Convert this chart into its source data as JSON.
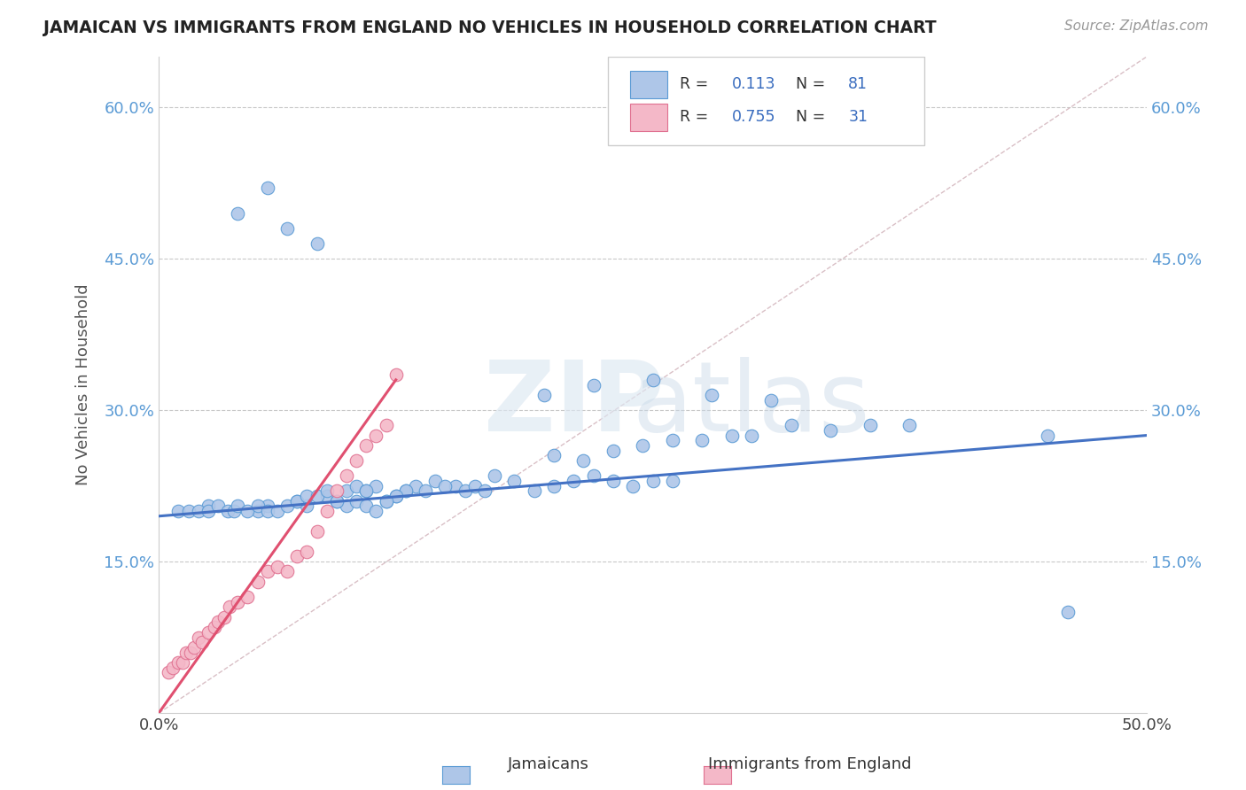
{
  "title": "JAMAICAN VS IMMIGRANTS FROM ENGLAND NO VEHICLES IN HOUSEHOLD CORRELATION CHART",
  "source": "Source: ZipAtlas.com",
  "ylabel": "No Vehicles in Household",
  "xlim": [
    0.0,
    50.0
  ],
  "ylim": [
    0.0,
    65.0
  ],
  "color_jamaican_fill": "#aec6e8",
  "color_jamaican_edge": "#5b9bd5",
  "color_england_fill": "#f4b8c8",
  "color_england_edge": "#e07090",
  "color_line_jamaican": "#4472c4",
  "color_line_england": "#e05070",
  "color_diag": "#d0b0b8",
  "background_color": "#ffffff",
  "grid_color": "#c8c8c8",
  "jamaican_x": [
    1.0,
    2.5,
    5.0,
    5.5,
    7.0,
    7.5,
    8.5,
    9.0,
    9.5,
    10.0,
    10.5,
    11.0,
    1.5,
    2.0,
    2.5,
    3.0,
    3.5,
    3.8,
    4.0,
    4.5,
    5.0,
    5.5,
    6.0,
    6.5,
    7.0,
    7.5,
    8.0,
    8.5,
    9.0,
    9.5,
    10.0,
    10.5,
    11.0,
    11.5,
    12.0,
    12.5,
    13.0,
    14.0,
    15.0,
    15.5,
    16.0,
    17.0,
    18.0,
    19.0,
    20.0,
    21.0,
    22.0,
    23.0,
    24.0,
    25.0,
    26.0,
    20.0,
    21.5,
    23.0,
    24.5,
    26.0,
    27.5,
    29.0,
    30.0,
    32.0,
    34.0,
    36.0,
    38.0,
    28.0,
    31.0,
    25.0,
    22.0,
    19.5,
    16.5,
    14.5,
    13.5,
    12.5,
    12.0,
    11.5,
    10.5,
    45.0,
    46.0,
    8.0,
    6.5,
    5.5,
    4.0
  ],
  "jamaican_y": [
    20.0,
    20.5,
    20.0,
    20.5,
    21.0,
    20.5,
    21.5,
    21.0,
    20.5,
    21.0,
    20.5,
    20.0,
    20.0,
    20.0,
    20.0,
    20.5,
    20.0,
    20.0,
    20.5,
    20.0,
    20.5,
    20.0,
    20.0,
    20.5,
    21.0,
    21.5,
    21.5,
    22.0,
    21.0,
    22.0,
    22.5,
    22.0,
    22.5,
    21.0,
    21.5,
    22.0,
    22.5,
    23.0,
    22.5,
    22.0,
    22.5,
    23.5,
    23.0,
    22.0,
    22.5,
    23.0,
    23.5,
    23.0,
    22.5,
    23.0,
    23.0,
    25.5,
    25.0,
    26.0,
    26.5,
    27.0,
    27.0,
    27.5,
    27.5,
    28.5,
    28.0,
    28.5,
    28.5,
    31.5,
    31.0,
    33.0,
    32.5,
    31.5,
    22.0,
    22.5,
    22.0,
    22.0,
    21.5,
    21.0,
    22.0,
    27.5,
    10.0,
    46.5,
    48.0,
    52.0,
    49.5
  ],
  "england_x": [
    0.5,
    0.7,
    1.0,
    1.2,
    1.4,
    1.6,
    1.8,
    2.0,
    2.2,
    2.5,
    2.8,
    3.0,
    3.3,
    3.6,
    4.0,
    4.5,
    5.0,
    5.5,
    6.0,
    6.5,
    7.0,
    7.5,
    8.0,
    8.5,
    9.0,
    9.5,
    10.0,
    10.5,
    11.0,
    11.5,
    12.0
  ],
  "england_y": [
    4.0,
    4.5,
    5.0,
    5.0,
    6.0,
    6.0,
    6.5,
    7.5,
    7.0,
    8.0,
    8.5,
    9.0,
    9.5,
    10.5,
    11.0,
    11.5,
    13.0,
    14.0,
    14.5,
    14.0,
    15.5,
    16.0,
    18.0,
    20.0,
    22.0,
    23.5,
    25.0,
    26.5,
    27.5,
    28.5,
    33.5
  ],
  "reg_jamaican_x0": 0.0,
  "reg_jamaican_y0": 19.5,
  "reg_jamaican_x1": 50.0,
  "reg_jamaican_y1": 27.5,
  "reg_england_x0": 0.0,
  "reg_england_y0": 0.0,
  "reg_england_x1": 12.0,
  "reg_england_y1": 33.0
}
